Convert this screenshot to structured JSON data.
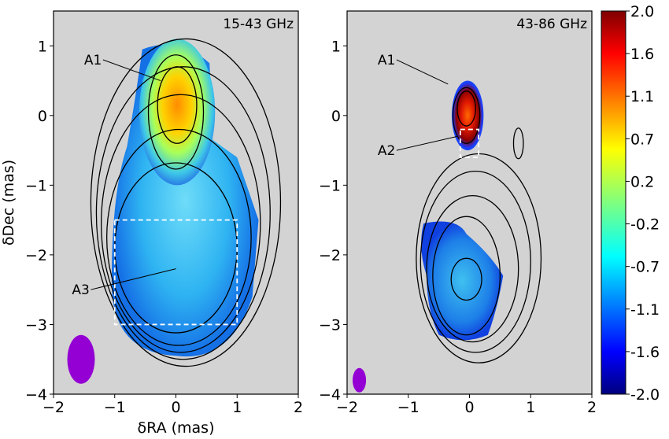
{
  "chart_data": [
    {
      "type": "heatmap",
      "panel_label": "15-43 GHz",
      "xlabel": "δRA (mas)",
      "ylabel": "δDec (mas)",
      "xlim": [
        -2,
        2
      ],
      "ylim": [
        -4,
        1.5
      ],
      "xticks": [
        -2,
        -1,
        0,
        1,
        2
      ],
      "yticks": [
        -4,
        -3,
        -2,
        -1,
        0,
        1
      ],
      "background_color": "#d3d3d3",
      "annotations": [
        {
          "text": "A1",
          "point": [
            -0.25,
            0.5
          ],
          "label_at": [
            -1.5,
            0.8
          ]
        },
        {
          "text": "A3",
          "point": [
            0.0,
            -2.2
          ],
          "label_at": [
            -1.7,
            -2.5
          ]
        }
      ],
      "dashed_box": {
        "x": [
          -1.0,
          1.0
        ],
        "y": [
          -3.0,
          -1.5
        ],
        "color": "#ffffff"
      },
      "beam": {
        "x": -1.55,
        "y": -3.5,
        "width": 0.45,
        "height": 0.7,
        "color": "#9400d3"
      },
      "peak": {
        "x": 0.05,
        "y": 0.2,
        "value": 1.0
      },
      "contours": [
        {
          "cx": 0.02,
          "cy": 0.15,
          "rx": 0.32,
          "ry": 0.55
        },
        {
          "cx": 0.0,
          "cy": 0.05,
          "rx": 0.45,
          "ry": 0.82
        },
        {
          "cx": 0.0,
          "cy": -1.9,
          "rx": 1.0,
          "ry": 1.22
        },
        {
          "cx": 0.05,
          "cy": -1.75,
          "rx": 1.18,
          "ry": 1.55
        },
        {
          "cx": 0.08,
          "cy": -1.55,
          "rx": 1.3,
          "ry": 1.85
        },
        {
          "cx": 0.12,
          "cy": -1.4,
          "rx": 1.42,
          "ry": 2.1
        },
        {
          "cx": 0.16,
          "cy": -1.25,
          "rx": 1.55,
          "ry": 2.35
        }
      ]
    },
    {
      "type": "heatmap",
      "panel_label": "43-86 GHz",
      "xlabel": "",
      "ylabel": "",
      "xlim": [
        -2,
        2
      ],
      "ylim": [
        -4,
        1.5
      ],
      "xticks": [
        -2,
        -1,
        0,
        1,
        2
      ],
      "yticks": [
        -4,
        -3,
        -2,
        -1,
        0,
        1
      ],
      "background_color": "#d3d3d3",
      "annotations": [
        {
          "text": "A1",
          "point": [
            -0.35,
            0.45
          ],
          "label_at": [
            -1.5,
            0.8
          ]
        },
        {
          "text": "A2",
          "point": [
            -0.2,
            -0.3
          ],
          "label_at": [
            -1.5,
            -0.5
          ]
        }
      ],
      "dashed_box": {
        "x": [
          -0.15,
          0.15
        ],
        "y": [
          -0.6,
          -0.2
        ],
        "color": "#ffffff"
      },
      "beam": {
        "x": -1.8,
        "y": -3.8,
        "width": 0.22,
        "height": 0.35,
        "color": "#9400d3"
      },
      "peak": {
        "x": -0.05,
        "y": 0.15,
        "value": 2.0
      },
      "contours": [
        {
          "cx": -0.05,
          "cy": 0.1,
          "rx": 0.15,
          "ry": 0.25
        },
        {
          "cx": -0.05,
          "cy": 0.0,
          "rx": 0.22,
          "ry": 0.4
        },
        {
          "cx": 0.8,
          "cy": -0.4,
          "rx": 0.08,
          "ry": 0.22
        },
        {
          "cx": -0.05,
          "cy": -2.35,
          "rx": 0.25,
          "ry": 0.3
        },
        {
          "cx": -0.05,
          "cy": -2.3,
          "rx": 0.55,
          "ry": 0.85
        },
        {
          "cx": 0.05,
          "cy": -2.2,
          "rx": 0.75,
          "ry": 1.05
        },
        {
          "cx": 0.1,
          "cy": -2.1,
          "rx": 0.9,
          "ry": 1.3
        },
        {
          "cx": 0.15,
          "cy": -2.05,
          "rx": 1.02,
          "ry": 1.5
        }
      ]
    }
  ],
  "colorbar": {
    "ticks": [
      "2.0",
      "1.6",
      "1.1",
      "0.7",
      "0.2",
      "-0.2",
      "-0.7",
      "-1.1",
      "-1.6",
      "-2.0"
    ],
    "range": [
      -2.0,
      2.0
    ],
    "colormap": "jet"
  }
}
